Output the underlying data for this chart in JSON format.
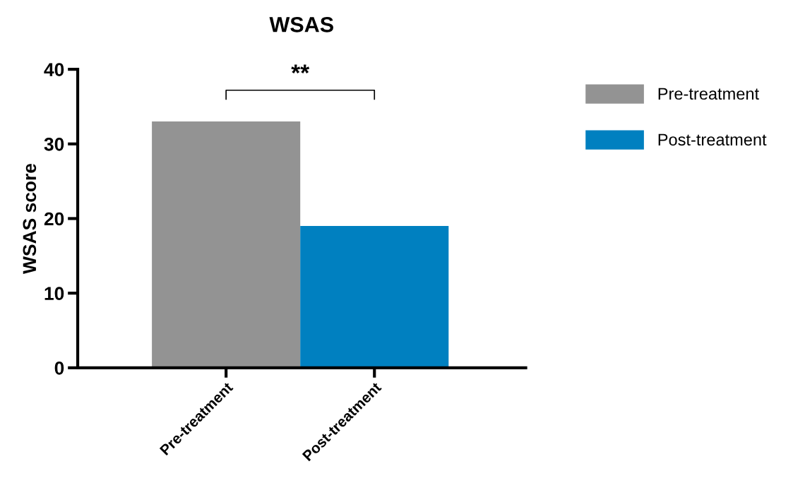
{
  "chart_data": {
    "type": "bar",
    "title": "WSAS",
    "ylabel": "WSAS score",
    "categories": [
      "Pre-treatment",
      "Post-treatment"
    ],
    "series": [
      {
        "name": "Pre-treatment",
        "color": "#939393",
        "values": [
          33,
          null
        ]
      },
      {
        "name": "Post-treatment",
        "color": "#0080c0",
        "values": [
          null,
          19
        ]
      }
    ],
    "ylim": [
      0,
      40
    ],
    "yticks": [
      0,
      10,
      20,
      30,
      40
    ],
    "grid": false,
    "legend": "right",
    "annotations": [
      "**"
    ]
  }
}
